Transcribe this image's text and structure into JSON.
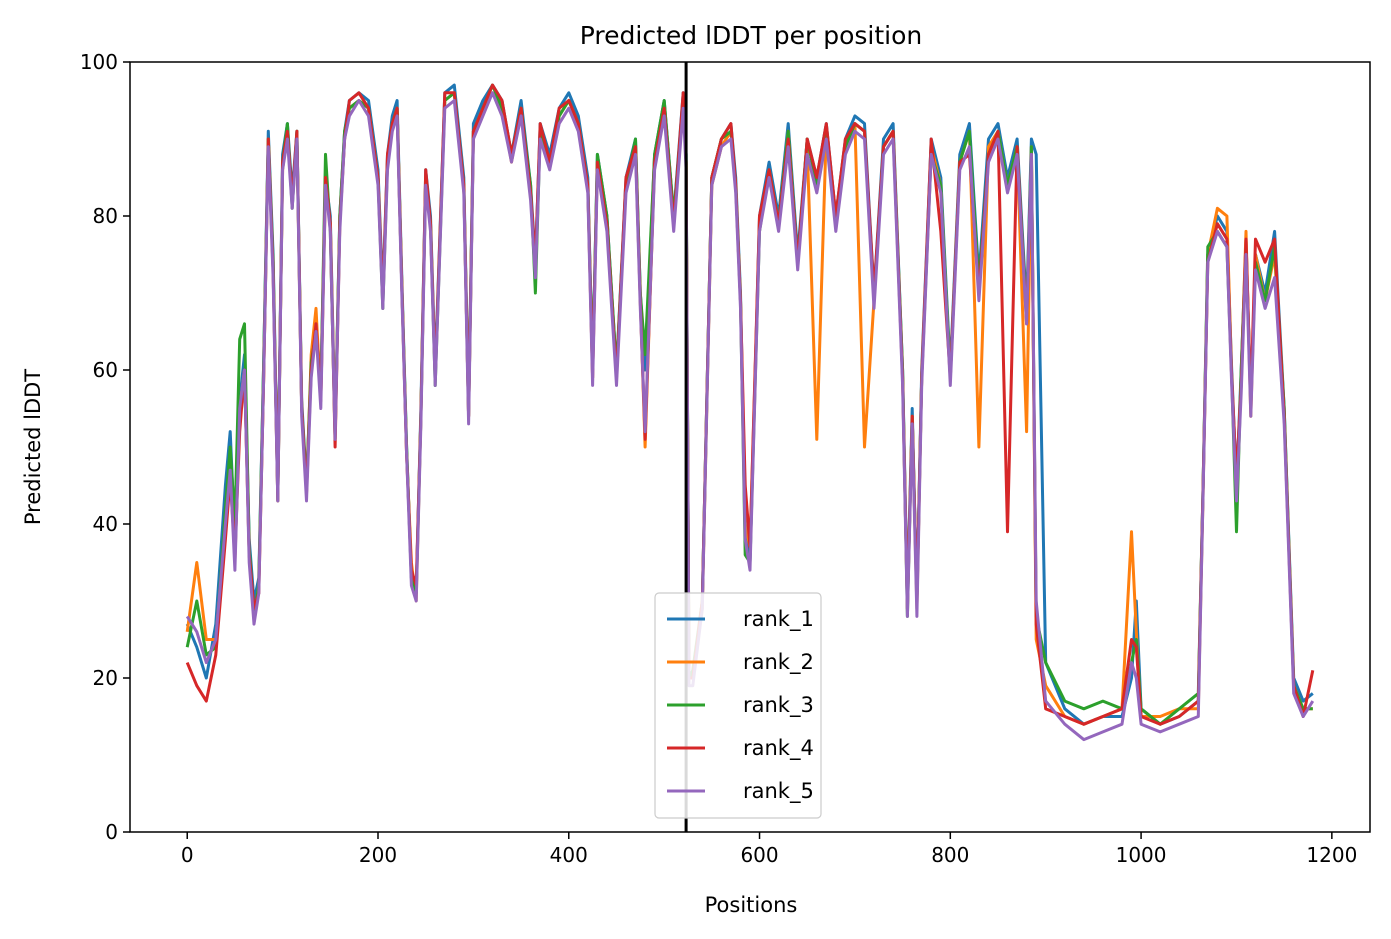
{
  "chart_data": {
    "type": "line",
    "title": "Predicted lDDT per position",
    "xlabel": "Positions",
    "ylabel": "Predicted lDDT",
    "xlim": [
      -60,
      1240
    ],
    "ylim": [
      0,
      100
    ],
    "xticks": [
      0,
      200,
      400,
      600,
      800,
      1000,
      1200
    ],
    "yticks": [
      0,
      20,
      40,
      60,
      80,
      100
    ],
    "grid": false,
    "legend_position": "bottom-center",
    "vertical_line": {
      "x": 523,
      "color": "#000000"
    },
    "colors": [
      "#1f77b4",
      "#ff7f0e",
      "#2ca02c",
      "#d62728",
      "#9467bd"
    ],
    "x": [
      0,
      10,
      20,
      30,
      40,
      45,
      50,
      55,
      60,
      65,
      70,
      75,
      80,
      85,
      90,
      95,
      100,
      105,
      110,
      115,
      120,
      125,
      130,
      135,
      140,
      145,
      150,
      155,
      160,
      165,
      170,
      180,
      190,
      200,
      205,
      210,
      215,
      220,
      225,
      230,
      235,
      240,
      245,
      250,
      255,
      260,
      270,
      280,
      290,
      295,
      300,
      310,
      320,
      330,
      340,
      350,
      360,
      365,
      370,
      380,
      390,
      400,
      410,
      420,
      425,
      430,
      440,
      450,
      460,
      470,
      475,
      480,
      490,
      500,
      510,
      520,
      523,
      526,
      530,
      540,
      550,
      560,
      570,
      575,
      580,
      585,
      590,
      600,
      610,
      620,
      630,
      640,
      650,
      660,
      670,
      680,
      690,
      700,
      710,
      720,
      730,
      740,
      750,
      755,
      760,
      765,
      770,
      780,
      790,
      800,
      810,
      820,
      830,
      840,
      850,
      860,
      870,
      880,
      885,
      890,
      900,
      920,
      940,
      960,
      980,
      990,
      995,
      1000,
      1020,
      1040,
      1060,
      1065,
      1070,
      1080,
      1090,
      1095,
      1100,
      1105,
      1110,
      1115,
      1120,
      1130,
      1140,
      1150,
      1160,
      1170,
      1180
    ],
    "series": [
      {
        "name": "rank_1",
        "values": [
          27,
          24,
          20,
          27,
          45,
          52,
          38,
          56,
          62,
          38,
          30,
          33,
          60,
          91,
          75,
          44,
          88,
          92,
          83,
          91,
          56,
          45,
          60,
          66,
          58,
          85,
          80,
          52,
          80,
          91,
          95,
          96,
          95,
          86,
          70,
          88,
          93,
          95,
          72,
          50,
          33,
          31,
          55,
          86,
          80,
          60,
          96,
          97,
          85,
          55,
          92,
          95,
          97,
          95,
          88,
          95,
          84,
          74,
          92,
          88,
          94,
          96,
          93,
          85,
          60,
          88,
          80,
          60,
          85,
          90,
          70,
          60,
          88,
          95,
          80,
          96,
          88,
          20,
          20,
          30,
          85,
          90,
          92,
          85,
          70,
          40,
          35,
          80,
          87,
          80,
          92,
          75,
          90,
          85,
          92,
          80,
          90,
          93,
          92,
          70,
          90,
          92,
          60,
          30,
          55,
          30,
          60,
          90,
          85,
          60,
          88,
          92,
          72,
          90,
          92,
          85,
          90,
          68,
          90,
          88,
          22,
          16,
          14,
          15,
          15,
          20,
          30,
          16,
          14,
          15,
          17,
          45,
          75,
          80,
          78,
          60,
          45,
          60,
          77,
          55,
          75,
          70,
          78,
          55,
          20,
          17,
          18
        ]
      },
      {
        "name": "rank_2",
        "values": [
          26,
          35,
          25,
          25,
          40,
          48,
          35,
          55,
          60,
          36,
          28,
          32,
          58,
          90,
          73,
          44,
          86,
          91,
          82,
          90,
          55,
          44,
          62,
          68,
          56,
          84,
          79,
          52,
          79,
          90,
          94,
          95,
          94,
          85,
          69,
          87,
          92,
          94,
          71,
          49,
          35,
          30,
          54,
          85,
          79,
          59,
          95,
          96,
          84,
          54,
          91,
          94,
          96,
          94,
          87,
          94,
          83,
          73,
          91,
          87,
          93,
          95,
          92,
          84,
          59,
          87,
          79,
          59,
          84,
          89,
          69,
          50,
          87,
          94,
          79,
          95,
          87,
          20,
          20,
          29,
          84,
          89,
          91,
          84,
          69,
          40,
          37,
          79,
          86,
          79,
          91,
          74,
          89,
          51,
          91,
          79,
          89,
          92,
          50,
          69,
          89,
          91,
          59,
          29,
          54,
          29,
          59,
          89,
          84,
          59,
          87,
          91,
          50,
          89,
          91,
          84,
          89,
          52,
          89,
          25,
          19,
          15,
          14,
          15,
          16,
          39,
          26,
          15,
          15,
          16,
          16,
          44,
          75,
          81,
          80,
          59,
          44,
          59,
          78,
          54,
          75,
          69,
          75,
          54,
          19,
          16,
          16
        ]
      },
      {
        "name": "rank_3",
        "values": [
          24,
          30,
          23,
          24,
          42,
          50,
          40,
          64,
          66,
          37,
          28,
          32,
          60,
          90,
          74,
          43,
          87,
          92,
          81,
          91,
          55,
          45,
          61,
          65,
          57,
          88,
          78,
          51,
          80,
          91,
          94,
          95,
          94,
          85,
          68,
          87,
          92,
          94,
          71,
          50,
          33,
          31,
          54,
          85,
          79,
          58,
          95,
          96,
          84,
          54,
          91,
          94,
          97,
          94,
          88,
          94,
          84,
          70,
          91,
          87,
          93,
          95,
          92,
          84,
          60,
          88,
          80,
          60,
          84,
          90,
          70,
          62,
          88,
          95,
          80,
          95,
          88,
          20,
          21,
          30,
          85,
          90,
          91,
          84,
          69,
          36,
          35,
          78,
          86,
          79,
          91,
          74,
          90,
          84,
          91,
          79,
          89,
          92,
          91,
          69,
          89,
          91,
          60,
          28,
          54,
          30,
          59,
          88,
          84,
          59,
          87,
          91,
          71,
          88,
          91,
          84,
          89,
          67,
          89,
          28,
          22,
          17,
          16,
          17,
          16,
          22,
          25,
          16,
          14,
          16,
          18,
          45,
          76,
          78,
          76,
          59,
          39,
          60,
          76,
          56,
          74,
          69,
          76,
          55,
          19,
          16,
          16
        ]
      },
      {
        "name": "rank_4",
        "values": [
          22,
          19,
          17,
          23,
          38,
          46,
          36,
          52,
          60,
          36,
          29,
          31,
          58,
          90,
          73,
          43,
          87,
          91,
          82,
          91,
          55,
          44,
          60,
          66,
          56,
          85,
          79,
          50,
          79,
          90,
          95,
          96,
          94,
          85,
          69,
          88,
          92,
          94,
          71,
          49,
          34,
          32,
          54,
          86,
          79,
          59,
          96,
          96,
          84,
          54,
          91,
          94,
          97,
          95,
          88,
          94,
          83,
          74,
          92,
          87,
          94,
          95,
          92,
          84,
          59,
          87,
          79,
          59,
          85,
          89,
          69,
          51,
          87,
          94,
          79,
          96,
          87,
          20,
          20,
          30,
          85,
          90,
          92,
          84,
          69,
          45,
          37,
          80,
          86,
          79,
          90,
          74,
          90,
          85,
          92,
          80,
          90,
          92,
          91,
          70,
          89,
          91,
          59,
          29,
          54,
          30,
          59,
          90,
          78,
          59,
          87,
          88,
          70,
          88,
          91,
          39,
          89,
          66,
          88,
          27,
          16,
          15,
          14,
          15,
          16,
          25,
          24,
          15,
          14,
          15,
          17,
          45,
          74,
          79,
          77,
          59,
          46,
          58,
          77,
          56,
          77,
          74,
          77,
          54,
          19,
          15,
          21
        ]
      },
      {
        "name": "rank_5",
        "values": [
          28,
          26,
          22,
          25,
          40,
          47,
          34,
          55,
          60,
          35,
          27,
          31,
          58,
          89,
          72,
          43,
          86,
          90,
          81,
          90,
          54,
          43,
          59,
          65,
          55,
          84,
          78,
          51,
          78,
          90,
          93,
          95,
          93,
          84,
          68,
          86,
          91,
          93,
          70,
          49,
          32,
          30,
          53,
          84,
          78,
          58,
          94,
          95,
          83,
          53,
          90,
          93,
          96,
          93,
          87,
          93,
          82,
          72,
          90,
          86,
          92,
          94,
          91,
          83,
          58,
          86,
          78,
          58,
          83,
          88,
          68,
          52,
          86,
          93,
          78,
          94,
          86,
          19,
          19,
          29,
          84,
          89,
          90,
          83,
          68,
          38,
          34,
          78,
          85,
          78,
          89,
          73,
          88,
          83,
          90,
          78,
          88,
          91,
          90,
          68,
          88,
          90,
          58,
          28,
          53,
          28,
          58,
          88,
          83,
          58,
          86,
          89,
          69,
          87,
          90,
          83,
          88,
          66,
          88,
          30,
          17,
          14,
          12,
          13,
          14,
          22,
          20,
          14,
          13,
          14,
          15,
          44,
          74,
          78,
          76,
          58,
          43,
          57,
          75,
          54,
          73,
          68,
          72,
          53,
          18,
          15,
          17
        ]
      }
    ]
  }
}
